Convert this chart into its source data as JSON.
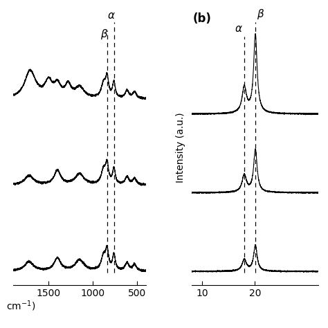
{
  "fig_width": 4.74,
  "fig_height": 4.74,
  "dpi": 100,
  "background": "#ffffff",
  "ftir_xlim": [
    1900,
    400
  ],
  "ftir_xticks": [
    1500,
    1000,
    500
  ],
  "ftir_xlabel": "cm$^{-1}$)",
  "ftir_beta_xline": 840,
  "ftir_alpha_xline": 763,
  "xrd_xlim": [
    8,
    32
  ],
  "xrd_xticks": [
    10,
    20
  ],
  "xrd_ylabel": "Intensity (a.u.)",
  "xrd_label_b": "(b)",
  "xrd_alpha_line": 18.0,
  "xrd_beta_line": 20.1,
  "offsets_ftir": [
    0.0,
    0.55,
    1.1
  ],
  "offsets_xrd": [
    0.0,
    0.55,
    1.1
  ]
}
